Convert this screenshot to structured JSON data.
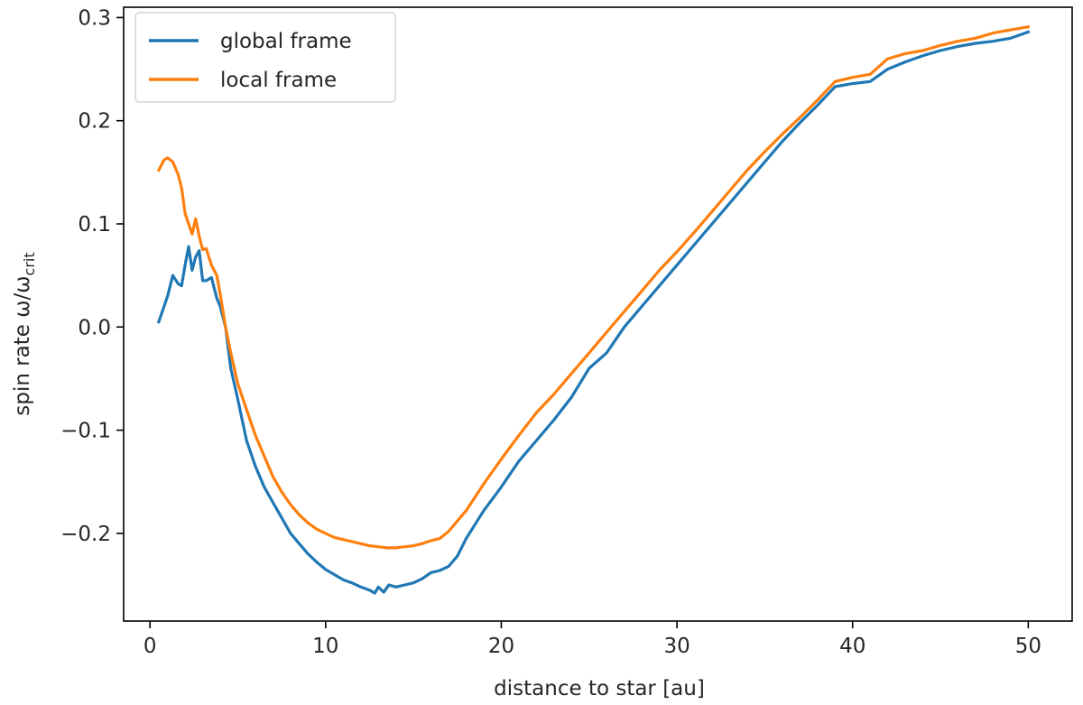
{
  "chart_data": {
    "type": "line",
    "xlabel": "distance to star [au]",
    "ylabel_prefix": "spin rate ω/ω",
    "ylabel_subscript": "crit",
    "xlim": [
      -1.5,
      52.5
    ],
    "ylim": [
      -0.285,
      0.31
    ],
    "xticks": [
      0,
      10,
      20,
      30,
      40,
      50
    ],
    "xtick_labels": [
      "0",
      "10",
      "20",
      "30",
      "40",
      "50"
    ],
    "yticks": [
      -0.2,
      -0.1,
      0.0,
      0.1,
      0.2,
      0.3
    ],
    "ytick_labels": [
      "−0.2",
      "−0.1",
      "0.0",
      "0.1",
      "0.2",
      "0.3"
    ],
    "grid": false,
    "legend_position": "top-left",
    "series": [
      {
        "name": "global frame",
        "color": "#1f77b4",
        "x": [
          0.5,
          1.0,
          1.3,
          1.6,
          1.8,
          2.0,
          2.2,
          2.4,
          2.6,
          2.8,
          3.0,
          3.2,
          3.5,
          3.8,
          4.0,
          4.3,
          4.6,
          5.0,
          5.5,
          6.0,
          6.5,
          7.0,
          7.5,
          8.0,
          8.5,
          9.0,
          9.5,
          10.0,
          10.5,
          11.0,
          11.5,
          12.0,
          12.5,
          12.8,
          13.0,
          13.3,
          13.6,
          14.0,
          14.5,
          15.0,
          15.5,
          16.0,
          16.5,
          17.0,
          17.5,
          18.0,
          19.0,
          20.0,
          21.0,
          22.0,
          23.0,
          24.0,
          25.0,
          26.0,
          27.0,
          28.0,
          29.0,
          30.0,
          31.0,
          32.0,
          33.0,
          34.0,
          35.0,
          36.0,
          37.0,
          38.0,
          39.0,
          40.0,
          41.0,
          42.0,
          43.0,
          44.0,
          45.0,
          46.0,
          47.0,
          48.0,
          49.0,
          50.0
        ],
        "y": [
          0.005,
          0.03,
          0.05,
          0.042,
          0.04,
          0.06,
          0.078,
          0.055,
          0.068,
          0.074,
          0.045,
          0.045,
          0.048,
          0.028,
          0.02,
          0.0,
          -0.04,
          -0.07,
          -0.11,
          -0.135,
          -0.155,
          -0.17,
          -0.185,
          -0.2,
          -0.21,
          -0.22,
          -0.228,
          -0.235,
          -0.24,
          -0.245,
          -0.248,
          -0.252,
          -0.255,
          -0.258,
          -0.252,
          -0.257,
          -0.25,
          -0.252,
          -0.25,
          -0.248,
          -0.244,
          -0.238,
          -0.236,
          -0.232,
          -0.222,
          -0.205,
          -0.178,
          -0.155,
          -0.13,
          -0.11,
          -0.09,
          -0.068,
          -0.04,
          -0.025,
          0.0,
          0.02,
          0.04,
          0.06,
          0.08,
          0.1,
          0.12,
          0.14,
          0.16,
          0.18,
          0.198,
          0.215,
          0.233,
          0.236,
          0.238,
          0.25,
          0.257,
          0.263,
          0.268,
          0.272,
          0.275,
          0.277,
          0.28,
          0.286
        ]
      },
      {
        "name": "local frame",
        "color": "#ff7f0e",
        "x": [
          0.5,
          0.8,
          1.0,
          1.3,
          1.6,
          1.8,
          2.0,
          2.2,
          2.4,
          2.6,
          2.8,
          3.0,
          3.2,
          3.5,
          3.8,
          4.0,
          4.3,
          4.6,
          5.0,
          5.5,
          6.0,
          6.5,
          7.0,
          7.5,
          8.0,
          8.5,
          9.0,
          9.5,
          10.0,
          10.5,
          11.0,
          11.5,
          12.0,
          12.5,
          13.0,
          13.5,
          14.0,
          14.5,
          15.0,
          15.5,
          16.0,
          16.5,
          17.0,
          17.5,
          18.0,
          19.0,
          20.0,
          21.0,
          22.0,
          23.0,
          24.0,
          25.0,
          26.0,
          27.0,
          28.0,
          29.0,
          30.0,
          31.0,
          32.0,
          33.0,
          34.0,
          35.0,
          36.0,
          37.0,
          38.0,
          39.0,
          40.0,
          41.0,
          42.0,
          43.0,
          44.0,
          45.0,
          46.0,
          47.0,
          48.0,
          49.0,
          50.0
        ],
        "y": [
          0.152,
          0.162,
          0.164,
          0.16,
          0.148,
          0.135,
          0.11,
          0.1,
          0.09,
          0.105,
          0.088,
          0.075,
          0.076,
          0.06,
          0.05,
          0.032,
          0.0,
          -0.025,
          -0.055,
          -0.08,
          -0.105,
          -0.125,
          -0.145,
          -0.16,
          -0.172,
          -0.182,
          -0.19,
          -0.196,
          -0.2,
          -0.204,
          -0.206,
          -0.208,
          -0.21,
          -0.212,
          -0.213,
          -0.214,
          -0.214,
          -0.213,
          -0.212,
          -0.21,
          -0.207,
          -0.205,
          -0.198,
          -0.188,
          -0.178,
          -0.152,
          -0.128,
          -0.105,
          -0.083,
          -0.065,
          -0.045,
          -0.025,
          -0.005,
          0.015,
          0.035,
          0.055,
          0.073,
          0.092,
          0.112,
          0.132,
          0.152,
          0.17,
          0.187,
          0.203,
          0.22,
          0.238,
          0.242,
          0.245,
          0.26,
          0.265,
          0.268,
          0.273,
          0.277,
          0.28,
          0.285,
          0.288,
          0.291
        ]
      }
    ]
  }
}
